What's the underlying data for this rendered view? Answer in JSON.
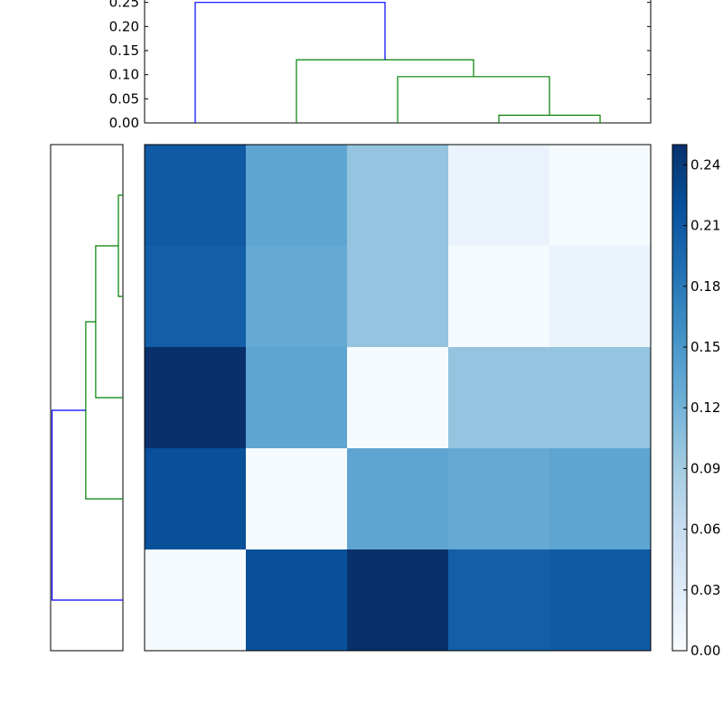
{
  "chart_data": [
    {
      "type": "dendrogram",
      "orientation": "top",
      "yticks": [
        "0.00",
        "0.05",
        "0.10",
        "0.15",
        "0.20",
        "0.25"
      ],
      "ylim": [
        0,
        0.255
      ],
      "leaf_positions": [
        0,
        1,
        2,
        3,
        4
      ],
      "links": [
        {
          "left": 3,
          "right": 4,
          "height": 0.016,
          "color": "#008000"
        },
        {
          "left": 2,
          "right": 3.5,
          "height": 0.096,
          "color": "#008000"
        },
        {
          "left": 1,
          "right": 2.75,
          "height": 0.131,
          "color": "#008000"
        },
        {
          "left": 0,
          "right": 1.875,
          "height": 0.25,
          "color": "#0000ff"
        }
      ]
    },
    {
      "type": "dendrogram",
      "orientation": "left",
      "leaf_order_top_to_bottom": [
        4,
        3,
        2,
        1,
        0
      ],
      "xlim": [
        0,
        0.255
      ],
      "links": [
        {
          "left": 3,
          "right": 4,
          "height": 0.016,
          "color": "#008000"
        },
        {
          "left": 2,
          "right": 3.5,
          "height": 0.096,
          "color": "#008000"
        },
        {
          "left": 1,
          "right": 2.75,
          "height": 0.131,
          "color": "#008000"
        },
        {
          "left": 0,
          "right": 1.875,
          "height": 0.25,
          "color": "#0000ff"
        }
      ]
    },
    {
      "type": "heatmap",
      "colormap": "Blues",
      "vmin": 0,
      "vmax": 0.25,
      "rows": [
        [
          0.21,
          0.135,
          0.1,
          0.016,
          0.002
        ],
        [
          0.205,
          0.13,
          0.1,
          0.002,
          0.016
        ],
        [
          0.25,
          0.135,
          0.002,
          0.1,
          0.1
        ],
        [
          0.22,
          0.002,
          0.135,
          0.13,
          0.135
        ],
        [
          0.002,
          0.22,
          0.25,
          0.205,
          0.21
        ]
      ],
      "colorbar": {
        "ticks": [
          "0.00",
          "0.03",
          "0.06",
          "0.09",
          "0.12",
          "0.15",
          "0.18",
          "0.21",
          "0.24"
        ],
        "tick_values": [
          0,
          0.03,
          0.06,
          0.09,
          0.12,
          0.15,
          0.18,
          0.21,
          0.24
        ]
      }
    }
  ]
}
